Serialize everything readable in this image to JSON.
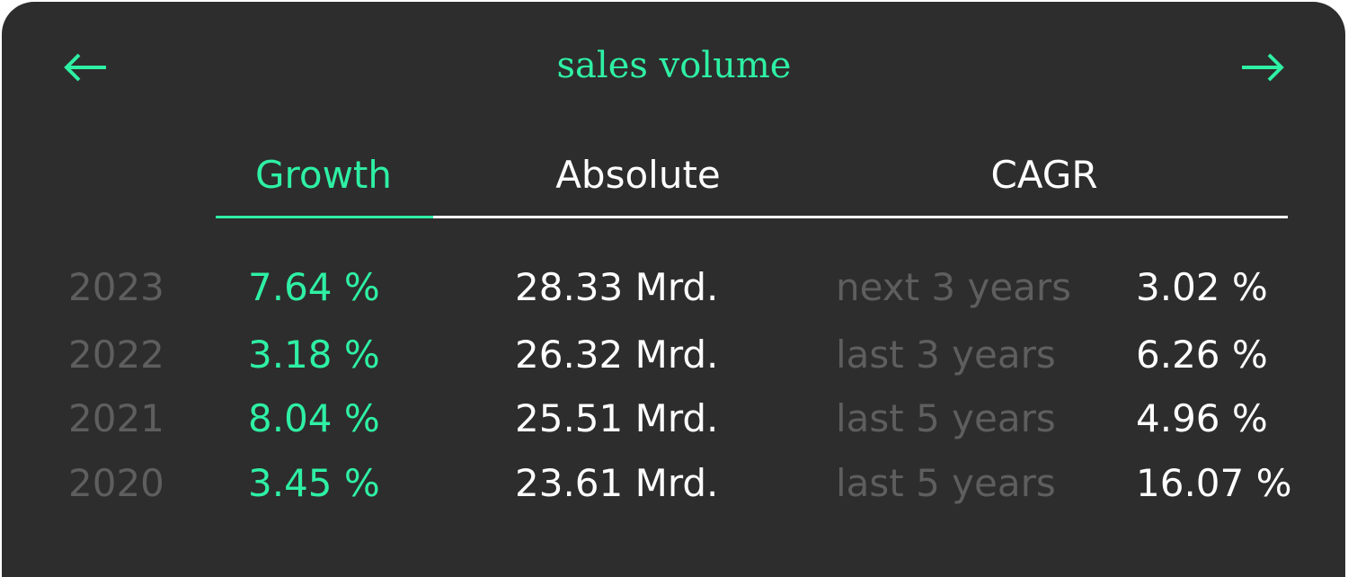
{
  "header": {
    "title": "sales volume",
    "prev_icon": "arrow-left-icon",
    "next_icon": "arrow-right-icon"
  },
  "tabs": [
    {
      "label": "Growth",
      "active": true
    },
    {
      "label": "Absolute",
      "active": false
    },
    {
      "label": "CAGR",
      "active": false
    }
  ],
  "colors": {
    "accent": "#2ef0a4",
    "background": "#2d2d2d",
    "muted": "#5e5e5e",
    "text": "#ffffff"
  },
  "rows": [
    {
      "year": "2023",
      "growth": "7.64 %",
      "absolute": "28.33 Mrd.",
      "cagr_label": "next 3 years",
      "cagr_value": "3.02 %"
    },
    {
      "year": "2022",
      "growth": "3.18 %",
      "absolute": "26.32 Mrd.",
      "cagr_label": "last 3 years",
      "cagr_value": "6.26 %"
    },
    {
      "year": "2021",
      "growth": "8.04 %",
      "absolute": "25.51 Mrd.",
      "cagr_label": "last 5 years",
      "cagr_value": "4.96 %"
    },
    {
      "year": "2020",
      "growth": "3.45 %",
      "absolute": "23.61 Mrd.",
      "cagr_label": "last 5 years",
      "cagr_value": "16.07 %"
    }
  ]
}
